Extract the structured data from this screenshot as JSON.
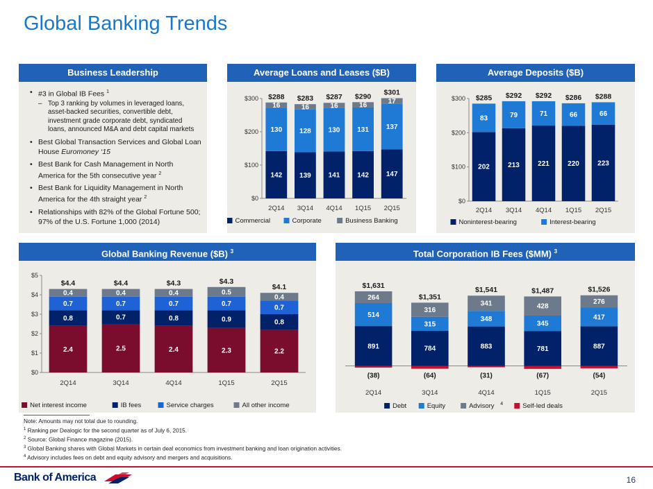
{
  "page": {
    "title": "Global Banking Trends",
    "page_number": "16"
  },
  "panels": {
    "business_leadership": {
      "header": "Business Leadership",
      "bullets": [
        {
          "text": "#3 in Global IB Fees ",
          "sup": "1",
          "sub": "Top 3 ranking by volumes in leveraged loans, asset-backed securities, convertible debt, investment grade corporate debt, syndicated loans, announced M&A and debt capital markets"
        },
        {
          "text_before": "Best Global Transaction Services and Global Loan House ",
          "italic": "Euromoney ‘15"
        },
        {
          "text": "Best Bank for Cash Management in North America for the 5th consecutive year ",
          "sup": "2"
        },
        {
          "text": "Best Bank for Liquidity Management in North America for the 4th straight year ",
          "sup": "2"
        },
        {
          "text": "Relationships with 82% of the Global Fortune 500; 97% of the U.S. Fortune 1,000 (2014)"
        }
      ]
    },
    "loans": {
      "header": "Average Loans and Leases ($B)"
    },
    "deposits": {
      "header": "Average Deposits ($B)"
    },
    "revenue": {
      "header": "Global Banking Revenue ($B) ",
      "sup": "3"
    },
    "ibfees": {
      "header": "Total Corporation IB Fees ($MM) ",
      "sup": "3"
    }
  },
  "chart_data": [
    {
      "id": "loans",
      "type": "bar",
      "stacked": true,
      "categories": [
        "2Q14",
        "3Q14",
        "4Q14",
        "1Q15",
        "2Q15"
      ],
      "series": [
        {
          "name": "Commercial",
          "values": [
            142,
            139,
            141,
            142,
            147
          ],
          "color": "#012169"
        },
        {
          "name": "Corporate",
          "values": [
            130,
            128,
            130,
            131,
            137
          ],
          "color": "#1f7ad6"
        },
        {
          "name": "Business Banking",
          "values": [
            16,
            16,
            16,
            16,
            17
          ],
          "color": "#6d7a8c"
        }
      ],
      "totals": [
        "$288",
        "$283",
        "$287",
        "$290",
        "$301"
      ],
      "yticks": [
        "$0",
        "$100",
        "$200",
        "$300"
      ],
      "ylim": [
        0,
        300
      ],
      "legend": "bottom"
    },
    {
      "id": "deposits",
      "type": "bar",
      "stacked": true,
      "categories": [
        "2Q14",
        "3Q14",
        "4Q14",
        "1Q15",
        "2Q15"
      ],
      "series": [
        {
          "name": "Noninterest-bearing",
          "values": [
            202,
            213,
            221,
            220,
            223
          ],
          "color": "#012169"
        },
        {
          "name": "Interest-bearing",
          "values": [
            83,
            79,
            71,
            66,
            66
          ],
          "color": "#1f7ad6"
        }
      ],
      "totals": [
        "$285",
        "$292",
        "$292",
        "$286",
        "$288"
      ],
      "yticks": [
        "$0",
        "$100",
        "$200",
        "$300"
      ],
      "ylim": [
        0,
        300
      ],
      "legend": "bottom"
    },
    {
      "id": "revenue",
      "type": "bar",
      "stacked": true,
      "categories": [
        "2Q14",
        "3Q14",
        "4Q14",
        "1Q15",
        "2Q15"
      ],
      "series": [
        {
          "name": "Net interest income",
          "values": [
            2.4,
            2.5,
            2.4,
            2.3,
            2.2
          ],
          "labels": [
            "2.4",
            "2.5",
            "2.4",
            "2.3",
            "2.2"
          ],
          "color": "#7a0c2e"
        },
        {
          "name": "IB fees",
          "values": [
            0.8,
            0.7,
            0.8,
            0.9,
            0.8
          ],
          "labels": [
            "0.8",
            "0.7",
            "0.8",
            "0.9",
            "0.8"
          ],
          "color": "#012169"
        },
        {
          "name": "Service charges",
          "values": [
            0.7,
            0.7,
            0.7,
            0.7,
            0.7
          ],
          "labels": [
            "0.7",
            "0.7",
            "0.7",
            "0.7",
            "0.7"
          ],
          "color": "#1f62d6"
        },
        {
          "name": "All other income",
          "values": [
            0.4,
            0.4,
            0.4,
            0.5,
            0.4
          ],
          "labels": [
            "0.4",
            "0.4",
            "0.4",
            "0.5",
            "0.4"
          ],
          "color": "#6d7a8c"
        }
      ],
      "totals": [
        "$4.4",
        "$4.4",
        "$4.3",
        "$4.3",
        "$4.1"
      ],
      "yticks": [
        "$0",
        "$1",
        "$2",
        "$3",
        "$4",
        "$5"
      ],
      "ylim": [
        0,
        5
      ],
      "legend": "bottom"
    },
    {
      "id": "ibfees",
      "type": "bar",
      "stacked": true,
      "categories": [
        "2Q14",
        "3Q14",
        "4Q14",
        "1Q15",
        "2Q15"
      ],
      "series": [
        {
          "name": "Debt",
          "values": [
            891,
            784,
            883,
            781,
            887
          ],
          "color": "#012169"
        },
        {
          "name": "Equity",
          "values": [
            514,
            315,
            348,
            345,
            417
          ],
          "color": "#1f7ad6"
        },
        {
          "name": "Advisory",
          "sup": "4",
          "values": [
            264,
            316,
            341,
            428,
            276
          ],
          "color": "#6d7a8c"
        },
        {
          "name": "Self-led deals",
          "values": [
            -38,
            -64,
            -31,
            -67,
            -54
          ],
          "labels": [
            "(38)",
            "(64)",
            "(31)",
            "(67)",
            "(54)"
          ],
          "color": "#c8102e"
        }
      ],
      "totals": [
        "$1,631",
        "$1,351",
        "$1,541",
        "$1,487",
        "$1,526"
      ],
      "ylim": [
        -70,
        1700
      ],
      "legend": "bottom"
    }
  ],
  "notes": {
    "main": "Note: Amounts may not total due to rounding.",
    "items": [
      {
        "sup": "1",
        "text": " Ranking per Dealogic for the second quarter as of July 6, 2015."
      },
      {
        "sup": "2",
        "text": " Source: Global Finance magazine (2015)."
      },
      {
        "sup": "3",
        "text": " Global Banking shares with Global Markets in certain deal economics from investment banking and loan origination activities."
      },
      {
        "sup": "4",
        "text": " Advisory includes fees on debt and equity advisory and mergers and acquisitions."
      }
    ]
  },
  "footer": {
    "logo_text": "Bank of America"
  }
}
